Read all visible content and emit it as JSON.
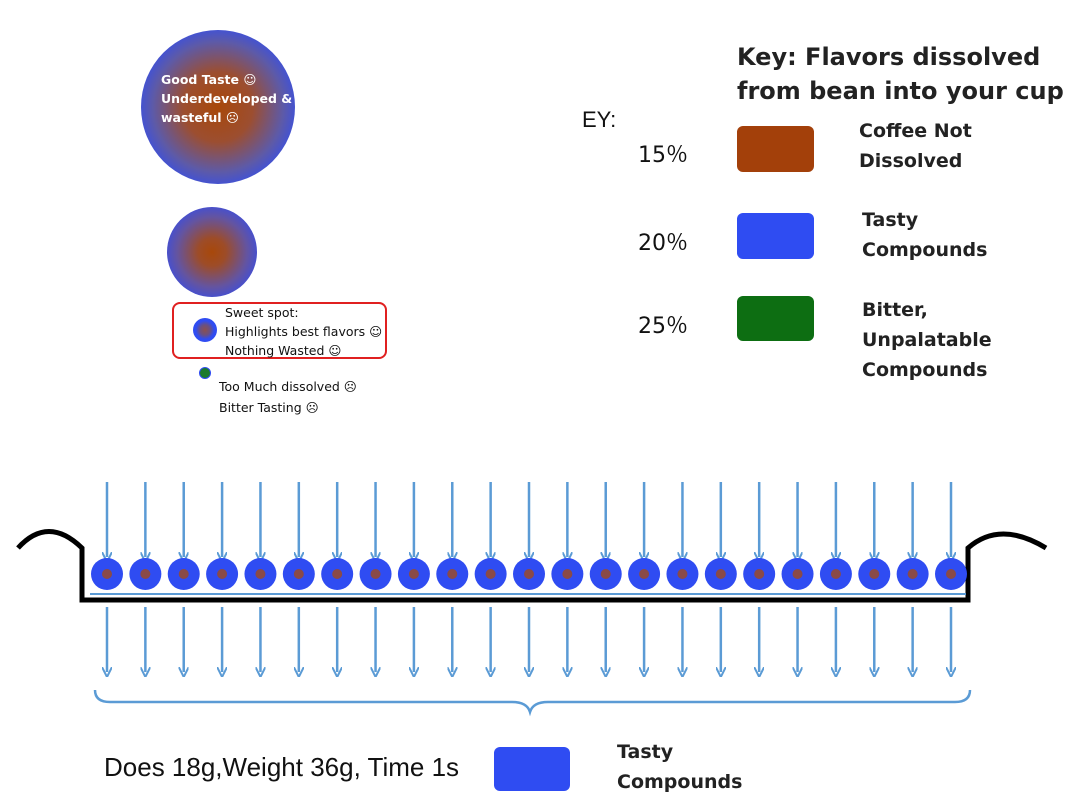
{
  "particles": {
    "big_label_lines": [
      "Good Taste ☺",
      "Underdeveloped &",
      "wasteful ☹"
    ],
    "sweet_spot_lines": [
      "Sweet spot:",
      "Highlights best flavors ☺",
      "Nothing Wasted ☺"
    ],
    "too_much_lines": [
      "Too Much dissolved ☹",
      "Bitter Tasting ☹"
    ]
  },
  "key": {
    "title_lines": [
      "Key: Flavors dissolved",
      "from bean into your cup"
    ],
    "ey_label": "EY:",
    "rows": [
      {
        "pct": "15％",
        "color": "#a3400a",
        "label_lines": [
          "Coffee Not",
          "Dissolved"
        ]
      },
      {
        "pct": "20％",
        "color": "#2f4cf2",
        "label_lines": [
          "Tasty",
          "Compounds"
        ]
      },
      {
        "pct": "25％",
        "color": "#0d6e12",
        "label_lines": [
          "Bitter,",
          "Unpalatable",
          "Compounds"
        ]
      }
    ]
  },
  "puck": {
    "particle_count": 23,
    "arrow_color": "#5b9bd5"
  },
  "bottom": {
    "params": "Does 18g,Weight 36g, Time 1s",
    "swatch_color": "#2f4cf2",
    "label_lines": [
      "Tasty",
      "Compounds"
    ]
  }
}
